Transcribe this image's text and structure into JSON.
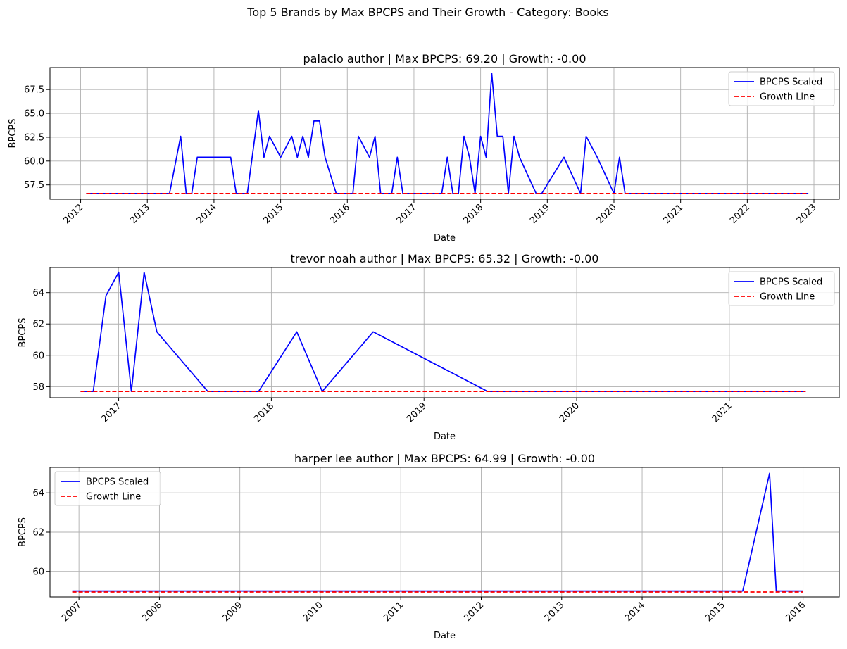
{
  "suptitle": "Top 5 Brands by Max BPCPS and Their Growth - Category: Books",
  "chart_data": [
    {
      "type": "line",
      "title": "palacio author | Max BPCPS: 69.20 | Growth: -0.00",
      "xlabel": "Date",
      "ylabel": "BPCPS",
      "x_ticks": [
        "2012",
        "2013",
        "2014",
        "2015",
        "2016",
        "2017",
        "2018",
        "2019",
        "2020",
        "2021",
        "2022",
        "2023"
      ],
      "y_ticks": [
        "57.5",
        "60.0",
        "62.5",
        "65.0",
        "67.5"
      ],
      "ylim": [
        56.0,
        69.8
      ],
      "legend_position": "upper right",
      "grid": true,
      "series": [
        {
          "name": "BPCPS Scaled",
          "color": "#0000ff",
          "style": "solid",
          "points": [
            [
              "2012-02-01",
              56.6
            ],
            [
              "2013-05-01",
              56.6
            ],
            [
              "2013-07-01",
              62.6
            ],
            [
              "2013-08-01",
              56.6
            ],
            [
              "2013-09-01",
              56.6
            ],
            [
              "2013-10-01",
              60.4
            ],
            [
              "2014-04-01",
              60.4
            ],
            [
              "2014-05-01",
              56.6
            ],
            [
              "2014-07-01",
              56.6
            ],
            [
              "2014-09-01",
              65.3
            ],
            [
              "2014-10-01",
              60.4
            ],
            [
              "2014-11-01",
              62.6
            ],
            [
              "2015-01-01",
              60.4
            ],
            [
              "2015-03-01",
              62.6
            ],
            [
              "2015-04-01",
              60.4
            ],
            [
              "2015-05-01",
              62.6
            ],
            [
              "2015-06-01",
              60.4
            ],
            [
              "2015-07-01",
              64.2
            ],
            [
              "2015-08-01",
              64.2
            ],
            [
              "2015-09-01",
              60.4
            ],
            [
              "2015-11-01",
              56.6
            ],
            [
              "2016-02-01",
              56.6
            ],
            [
              "2016-03-01",
              62.6
            ],
            [
              "2016-05-01",
              60.4
            ],
            [
              "2016-06-01",
              62.6
            ],
            [
              "2016-07-01",
              56.6
            ],
            [
              "2016-09-01",
              56.6
            ],
            [
              "2016-10-01",
              60.4
            ],
            [
              "2016-11-01",
              56.6
            ],
            [
              "2017-06-01",
              56.6
            ],
            [
              "2017-07-01",
              60.4
            ],
            [
              "2017-08-01",
              56.6
            ],
            [
              "2017-09-01",
              56.6
            ],
            [
              "2017-10-01",
              62.6
            ],
            [
              "2017-11-01",
              60.4
            ],
            [
              "2017-12-01",
              56.6
            ],
            [
              "2018-01-01",
              62.6
            ],
            [
              "2018-02-01",
              60.4
            ],
            [
              "2018-03-01",
              69.2
            ],
            [
              "2018-04-01",
              62.6
            ],
            [
              "2018-05-01",
              62.6
            ],
            [
              "2018-06-01",
              56.6
            ],
            [
              "2018-07-01",
              62.6
            ],
            [
              "2018-08-01",
              60.4
            ],
            [
              "2018-11-01",
              56.6
            ],
            [
              "2018-12-01",
              56.6
            ],
            [
              "2019-04-01",
              60.4
            ],
            [
              "2019-07-01",
              56.6
            ],
            [
              "2019-08-01",
              62.6
            ],
            [
              "2019-10-01",
              60.4
            ],
            [
              "2020-01-01",
              56.6
            ],
            [
              "2020-02-01",
              60.4
            ],
            [
              "2020-03-01",
              56.6
            ],
            [
              "2022-12-01",
              56.6
            ]
          ]
        },
        {
          "name": "Growth Line",
          "color": "#ff0000",
          "style": "dashed",
          "points": [
            [
              "2012-02-01",
              56.6
            ],
            [
              "2022-12-01",
              56.6
            ]
          ]
        }
      ]
    },
    {
      "type": "line",
      "title": "trevor noah author | Max BPCPS: 65.32 | Growth: -0.00",
      "xlabel": "Date",
      "ylabel": "BPCPS",
      "x_ticks": [
        "2017",
        "2018",
        "2019",
        "2020",
        "2021"
      ],
      "y_ticks": [
        "58",
        "60",
        "62",
        "64"
      ],
      "ylim": [
        57.3,
        65.6
      ],
      "legend_position": "upper right",
      "grid": true,
      "series": [
        {
          "name": "BPCPS Scaled",
          "color": "#0000ff",
          "style": "solid",
          "points": [
            [
              "2016-10-01",
              57.7
            ],
            [
              "2016-11-01",
              57.7
            ],
            [
              "2016-12-01",
              63.8
            ],
            [
              "2017-01-01",
              65.3
            ],
            [
              "2017-02-01",
              57.7
            ],
            [
              "2017-03-01",
              65.3
            ],
            [
              "2017-04-01",
              61.5
            ],
            [
              "2017-08-01",
              57.7
            ],
            [
              "2017-12-01",
              57.7
            ],
            [
              "2018-03-01",
              61.5
            ],
            [
              "2018-05-01",
              57.7
            ],
            [
              "2018-09-01",
              61.5
            ],
            [
              "2019-06-01",
              57.7
            ],
            [
              "2021-07-01",
              57.7
            ]
          ]
        },
        {
          "name": "Growth Line",
          "color": "#ff0000",
          "style": "dashed",
          "points": [
            [
              "2016-10-01",
              57.7
            ],
            [
              "2021-07-01",
              57.7
            ]
          ]
        }
      ]
    },
    {
      "type": "line",
      "title": "harper lee author | Max BPCPS: 64.99 | Growth: -0.00",
      "xlabel": "Date",
      "ylabel": "BPCPS",
      "x_ticks": [
        "2007",
        "2008",
        "2009",
        "2010",
        "2011",
        "2012",
        "2013",
        "2014",
        "2015",
        "2016"
      ],
      "y_ticks": [
        "60",
        "62",
        "64"
      ],
      "ylim": [
        58.7,
        65.3
      ],
      "legend_position": "upper left",
      "grid": true,
      "series": [
        {
          "name": "BPCPS Scaled",
          "color": "#0000ff",
          "style": "solid",
          "points": [
            [
              "2006-12-01",
              59.0
            ],
            [
              "2015-04-01",
              59.0
            ],
            [
              "2015-08-01",
              65.0
            ],
            [
              "2015-09-01",
              59.0
            ],
            [
              "2016-01-01",
              59.0
            ]
          ]
        },
        {
          "name": "Growth Line",
          "color": "#ff0000",
          "style": "dashed",
          "points": [
            [
              "2006-12-01",
              58.95
            ],
            [
              "2016-01-01",
              58.95
            ]
          ]
        }
      ]
    }
  ]
}
